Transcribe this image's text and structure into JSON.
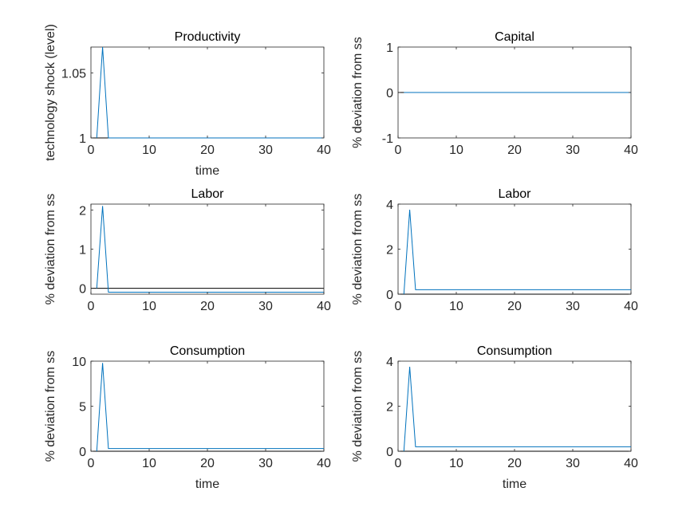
{
  "chart_data": [
    {
      "type": "line",
      "title": "Productivity",
      "xlabel": "time",
      "ylabel": "technology shock (level)",
      "xlim": [
        0,
        40
      ],
      "ylim": [
        1,
        1.07
      ],
      "xticks": [
        0,
        10,
        20,
        30,
        40
      ],
      "yticks": [
        1,
        1.05
      ],
      "ytick_labels": [
        "1",
        "1.05"
      ],
      "series": [
        {
          "color": "#0072bd",
          "x": [
            1,
            2,
            3,
            40
          ],
          "y": [
            1,
            1.07,
            1,
            1
          ]
        }
      ],
      "reference_line": {
        "color": "#000000",
        "y": 1
      }
    },
    {
      "type": "line",
      "title": "Capital",
      "xlabel": "",
      "ylabel": "% deviation from ss",
      "xlim": [
        0,
        40
      ],
      "ylim": [
        -1,
        1
      ],
      "xticks": [
        0,
        10,
        20,
        30,
        40
      ],
      "yticks": [
        -1,
        0,
        1
      ],
      "ytick_labels": [
        "-1",
        "0",
        "1"
      ],
      "series": [
        {
          "color": "#0072bd",
          "x": [
            1,
            40
          ],
          "y": [
            0,
            0
          ]
        }
      ],
      "reference_line": {
        "color": "#000000",
        "y": 0
      }
    },
    {
      "type": "line",
      "title": "Labor",
      "xlabel": "",
      "ylabel": "% deviation from ss",
      "xlim": [
        0,
        40
      ],
      "ylim": [
        -0.15,
        2.15
      ],
      "xticks": [
        0,
        10,
        20,
        30,
        40
      ],
      "yticks": [
        0,
        1,
        2
      ],
      "ytick_labels": [
        "0",
        "1",
        "2"
      ],
      "series": [
        {
          "color": "#0072bd",
          "x": [
            1,
            2,
            3,
            40
          ],
          "y": [
            0,
            2.1,
            -0.1,
            -0.1
          ]
        }
      ],
      "reference_line": {
        "color": "#000000",
        "y": 0
      }
    },
    {
      "type": "line",
      "title": "Labor",
      "xlabel": "",
      "ylabel": "% deviation from ss",
      "xlim": [
        0,
        40
      ],
      "ylim": [
        0,
        4
      ],
      "xticks": [
        0,
        10,
        20,
        30,
        40
      ],
      "yticks": [
        0,
        2,
        4
      ],
      "ytick_labels": [
        "0",
        "2",
        "4"
      ],
      "series": [
        {
          "color": "#0072bd",
          "x": [
            1,
            2,
            3,
            40
          ],
          "y": [
            0,
            3.75,
            0.2,
            0.2
          ]
        }
      ],
      "reference_line": {
        "color": "#000000",
        "y": 0
      }
    },
    {
      "type": "line",
      "title": "Consumption",
      "xlabel": "time",
      "ylabel": "% deviation from ss",
      "xlim": [
        0,
        40
      ],
      "ylim": [
        0,
        10
      ],
      "xticks": [
        0,
        10,
        20,
        30,
        40
      ],
      "yticks": [
        0,
        5,
        10
      ],
      "ytick_labels": [
        "0",
        "5",
        "10"
      ],
      "series": [
        {
          "color": "#0072bd",
          "x": [
            1,
            2,
            3,
            40
          ],
          "y": [
            0,
            9.8,
            0.3,
            0.3
          ]
        }
      ],
      "reference_line": {
        "color": "#000000",
        "y": 0
      }
    },
    {
      "type": "line",
      "title": "Consumption",
      "xlabel": "time",
      "ylabel": "% deviation from ss",
      "xlim": [
        0,
        40
      ],
      "ylim": [
        0,
        4
      ],
      "xticks": [
        0,
        10,
        20,
        30,
        40
      ],
      "yticks": [
        0,
        2,
        4
      ],
      "ytick_labels": [
        "0",
        "2",
        "4"
      ],
      "series": [
        {
          "color": "#0072bd",
          "x": [
            1,
            2,
            3,
            40
          ],
          "y": [
            0,
            3.75,
            0.2,
            0.2
          ]
        }
      ],
      "reference_line": {
        "color": "#000000",
        "y": 0
      }
    }
  ]
}
